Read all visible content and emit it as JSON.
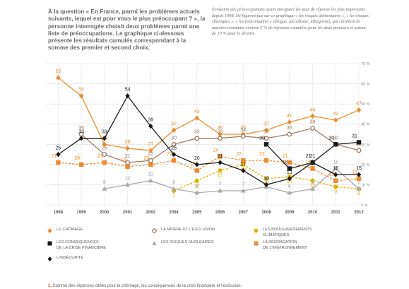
{
  "header": {
    "question": "À la question « En France, parmi les problèmes actuels suivants, lequel est pour vous le plus préoccupant ? », la personne interrogée choisit deux problèmes parmi une liste de préoccupations. Le graphique ci-dessous présente les résultats cumulés correspondant à la somme des premier et second choix.",
    "note": "Évolution des préoccupations ayant enregistré les taux de réponse les plus importants depuis 1998. Ne figurent pas sur ce graphique « les risques alimentaires », « les risques chimiques », « les toxicomanies » (drogue, alcoolisme, tabagisme), qui récoltent de manière constante environ 5 % de réponses cumulées pour les deux premiers et autour de 10 % pour le dernier."
  },
  "legend_items": [
    {
      "label": "LE CHÔMAGE",
      "icon": "diamond-icon"
    },
    {
      "label": "LA MISÈRE ET L'EXCLUSION",
      "icon": "open-circle-icon"
    },
    {
      "label": "LES BOULEVERSEMENTS\nCLIMATIQUES",
      "icon": "hexagon-icon"
    },
    {
      "label": "LES CONSÉQUENCES\nDE LA CRISE FINANCIÈRE",
      "icon": "square-icon"
    },
    {
      "label": "LES RISQUES NUCLÉAIRES",
      "icon": "triangle-icon"
    },
    {
      "label": "LA DÉGRADATION\nDE L'ENVIRONNEMENT",
      "icon": "square-icon"
    },
    {
      "label": "L'INSÉCURITÉ",
      "icon": "diamond-icon"
    }
  ],
  "footnote": {
    "number": "1.",
    "text": " Somme des réponses citées pour le chômage, les conséquences de la crise financière et l'exclusion."
  },
  "chart_data": {
    "type": "line",
    "x": [
      "1998",
      "1999",
      "2000",
      "2001",
      "2002",
      "2004",
      "2005",
      "2006",
      "2007",
      "2008",
      "2009",
      "2010",
      "2011",
      "2012"
    ],
    "ylim": [
      0,
      70
    ],
    "yticks": [
      0,
      10,
      20,
      30,
      40,
      50,
      60,
      70
    ],
    "ytick_labels": [
      "0 %",
      "10 %",
      "20 %",
      "30 %",
      "40 %",
      "50 %",
      "60 %",
      "70 %"
    ],
    "grid": true,
    "legend_position": "bottom",
    "series": [
      {
        "name": "LE CHÔMAGE",
        "color": "#f08a2c",
        "marker": "diamond",
        "line": "solid",
        "values": [
          63,
          54,
          30,
          28,
          27,
          37,
          43,
          35,
          35,
          37,
          41,
          44,
          42,
          47
        ]
      },
      {
        "name": "LA MISÈRE ET L'EXCLUSION",
        "color": "#9c7a63",
        "marker": "open-circle",
        "line": "solid",
        "values": [
          null,
          35,
          25,
          21,
          22,
          30,
          33,
          33,
          34,
          33,
          35,
          38,
          30,
          27
        ]
      },
      {
        "name": "LES BOULEVERSEMENTS CLIMATIQUES",
        "color": "#e3b100",
        "marker": "hexagon",
        "line": "dashed",
        "values": [
          null,
          null,
          null,
          null,
          null,
          7,
          12,
          17,
          20,
          13,
          14,
          12,
          9,
          8
        ]
      },
      {
        "name": "LES CONSÉQUENCES DE LA CRISE FINANCIÈRE",
        "color": "#1a1a1a",
        "marker": "square",
        "line": "solid",
        "values": [
          null,
          null,
          null,
          null,
          null,
          null,
          null,
          null,
          null,
          30,
          18,
          21,
          30,
          31
        ]
      },
      {
        "name": "LES RISQUES NUCLÉAIRES",
        "color": "#a8a8a8",
        "marker": "triangle",
        "line": "solid",
        "values": [
          null,
          null,
          8,
          10,
          12,
          8,
          6,
          7,
          7,
          9,
          6,
          8,
          18,
          8
        ]
      },
      {
        "name": "LA DÉGRADATION DE L'ENVIRONNEMENT",
        "color": "#f08a2c",
        "marker": "square",
        "line": "dashed",
        "values": [
          21,
          20,
          21,
          19,
          20,
          22,
          17,
          24,
          22,
          22,
          21,
          18,
          12,
          13
        ]
      },
      {
        "name": "L'INSÉCURITÉ",
        "color": "#1a1a1a",
        "marker": "diamond",
        "line": "solid",
        "values": [
          25,
          33,
          33,
          54,
          39,
          25,
          20,
          21,
          17,
          10,
          13,
          21,
          15,
          15
        ]
      }
    ]
  }
}
